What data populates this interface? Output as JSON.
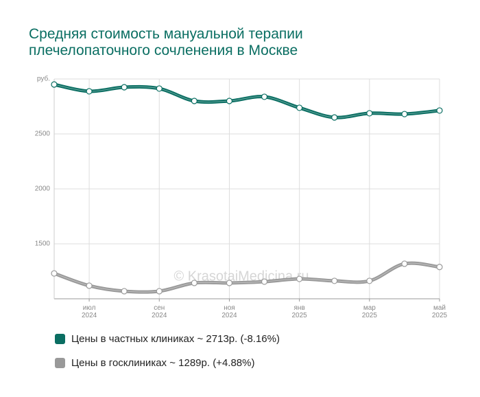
{
  "chart_data": {
    "type": "line",
    "title": "Средняя стоимость мануальной терапии плечелопаточного сочленения в Москве",
    "watermark": "© KrasotaiMedicina.ru",
    "categories": [
      null,
      "июл 2024",
      null,
      "сен 2024",
      null,
      "ноя 2024",
      null,
      "янв 2025",
      null,
      "мар 2025",
      null,
      "май 2025"
    ],
    "series": [
      {
        "name": "Цены в частных клиниках ~ 2713р. (-8.16%)",
        "color": "#0a6e62",
        "values": [
          2950,
          2888,
          2925,
          2913,
          2800,
          2800,
          2838,
          2738,
          2650,
          2688,
          2681,
          2713
        ]
      },
      {
        "name": "Цены в госклиниках ~ 1289р. (+4.88%)",
        "color": "#999999",
        "values": [
          1231,
          1119,
          1069,
          1069,
          1144,
          1144,
          1156,
          1181,
          1163,
          1163,
          1319,
          1289
        ]
      }
    ],
    "ylim": [
      1000,
      3000
    ],
    "yticks": [
      1500,
      2000,
      2500,
      {
        "value": 3000,
        "label": "руб."
      }
    ],
    "grid": true
  }
}
